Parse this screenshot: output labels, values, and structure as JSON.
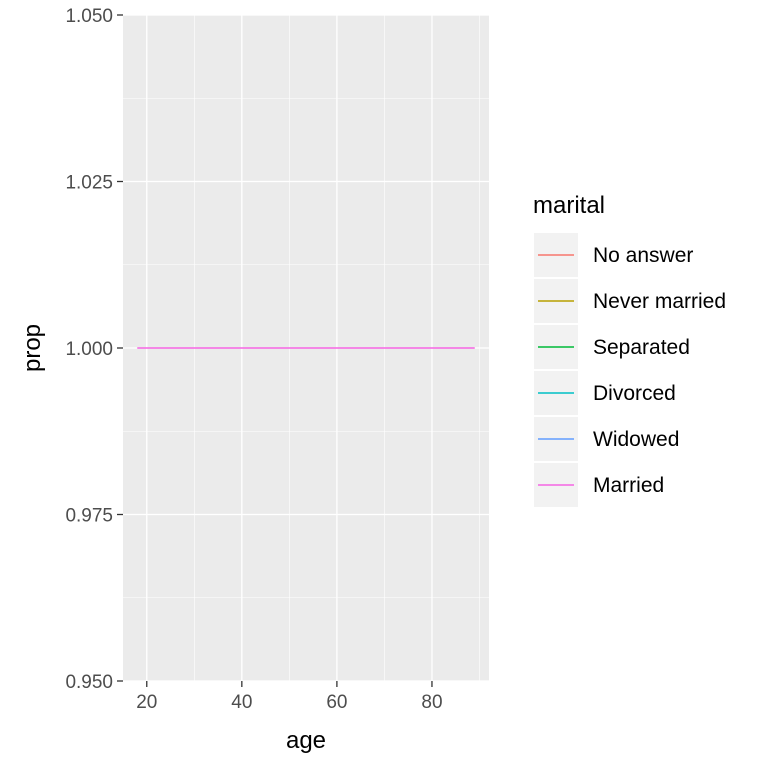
{
  "chart_data": {
    "type": "line",
    "xlabel": "age",
    "ylabel": "prop",
    "xlim": [
      15,
      92
    ],
    "ylim": [
      0.95,
      1.05
    ],
    "x_ticks": [
      20,
      40,
      60,
      80
    ],
    "x_tick_labels": [
      "20",
      "40",
      "60",
      "80"
    ],
    "y_ticks": [
      0.95,
      0.975,
      1.0,
      1.025,
      1.05
    ],
    "y_tick_labels": [
      "0.950",
      "0.975",
      "1.000",
      "1.025",
      "1.050"
    ],
    "grid": true,
    "legend": {
      "title": "marital",
      "position": "right"
    },
    "series": [
      {
        "name": "No answer",
        "color": "#F8766D",
        "x": [],
        "y": []
      },
      {
        "name": "Never married",
        "color": "#B79F00",
        "x": [],
        "y": []
      },
      {
        "name": "Separated",
        "color": "#00BA38",
        "x": [],
        "y": []
      },
      {
        "name": "Divorced",
        "color": "#00BFC4",
        "x": [],
        "y": []
      },
      {
        "name": "Widowed",
        "color": "#619CFF",
        "x": [],
        "y": []
      },
      {
        "name": "Married",
        "color": "#F564E3",
        "x": [
          18,
          89
        ],
        "y": [
          1.0,
          1.0
        ]
      }
    ]
  }
}
